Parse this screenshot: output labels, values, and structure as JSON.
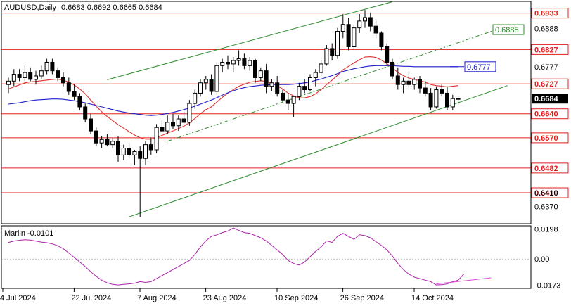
{
  "chart_data": [
    {
      "type": "candlestick",
      "title": "AUDUSD,Daily",
      "ohlc_text": "0.6683 0.6692 0.6665 0.6684",
      "ylim": [
        0.6322,
        0.6965
      ],
      "x_ticks": [
        "4 Jul 2024",
        "22 Jul 2024",
        "7 Aug 2024",
        "23 Aug 2024",
        "10 Sep 2024",
        "26 Sep 2024",
        "14 Oct 2024"
      ],
      "y_ticks": [
        "0.6888",
        "0.6777",
        "0.6684",
        "0.6410",
        "0.6370"
      ],
      "horizontal_levels": [
        {
          "value": 0.6933,
          "label": "0.6933"
        },
        {
          "value": 0.6827,
          "label": "0.6827"
        },
        {
          "value": 0.6727,
          "label": "0.6727"
        },
        {
          "value": 0.664,
          "label": "0.6640"
        },
        {
          "value": 0.657,
          "label": "0.6570"
        },
        {
          "value": 0.6482,
          "label": "0.6482"
        },
        {
          "value": 0.641,
          "label": "0.6410"
        }
      ],
      "target_labels": [
        {
          "value": 0.6885,
          "label": "0.6885",
          "color": "#2e8b2e"
        },
        {
          "value": 0.6777,
          "label": "0.6777",
          "color": "#1a1acc"
        }
      ],
      "current_price": {
        "value": 0.6684,
        "label": "0.6684"
      },
      "ohlc": [
        [
          0.6725,
          0.6745,
          0.67,
          0.6735
        ],
        [
          0.6735,
          0.677,
          0.672,
          0.6755
        ],
        [
          0.6755,
          0.677,
          0.6735,
          0.6745
        ],
        [
          0.6745,
          0.678,
          0.673,
          0.676
        ],
        [
          0.676,
          0.6775,
          0.6735,
          0.674
        ],
        [
          0.674,
          0.6765,
          0.6725,
          0.675
        ],
        [
          0.675,
          0.678,
          0.674,
          0.6765
        ],
        [
          0.6765,
          0.68,
          0.6755,
          0.679
        ],
        [
          0.679,
          0.68,
          0.6755,
          0.6765
        ],
        [
          0.6765,
          0.6775,
          0.6735,
          0.6745
        ],
        [
          0.6745,
          0.676,
          0.672,
          0.673
        ],
        [
          0.673,
          0.6745,
          0.6695,
          0.6705
        ],
        [
          0.6705,
          0.6725,
          0.668,
          0.669
        ],
        [
          0.669,
          0.67,
          0.665,
          0.666
        ],
        [
          0.666,
          0.667,
          0.6615,
          0.6625
        ],
        [
          0.6625,
          0.664,
          0.658,
          0.659
        ],
        [
          0.659,
          0.66,
          0.6545,
          0.6555
        ],
        [
          0.6555,
          0.6575,
          0.654,
          0.6565
        ],
        [
          0.6565,
          0.658,
          0.6545,
          0.655
        ],
        [
          0.655,
          0.657,
          0.654,
          0.656
        ],
        [
          0.656,
          0.6575,
          0.65,
          0.652
        ],
        [
          0.652,
          0.655,
          0.6505,
          0.654
        ],
        [
          0.654,
          0.6555,
          0.651,
          0.652
        ],
        [
          0.652,
          0.6535,
          0.649,
          0.653
        ],
        [
          0.653,
          0.6545,
          0.634,
          0.651
        ],
        [
          0.651,
          0.656,
          0.649,
          0.655
        ],
        [
          0.655,
          0.657,
          0.652,
          0.6535
        ],
        [
          0.6535,
          0.661,
          0.6525,
          0.66
        ],
        [
          0.66,
          0.662,
          0.6585,
          0.659
        ],
        [
          0.659,
          0.6635,
          0.658,
          0.6615
        ],
        [
          0.6615,
          0.664,
          0.6595,
          0.6605
        ],
        [
          0.6605,
          0.6635,
          0.659,
          0.6625
        ],
        [
          0.6625,
          0.665,
          0.661,
          0.6615
        ],
        [
          0.6615,
          0.668,
          0.6605,
          0.667
        ],
        [
          0.667,
          0.671,
          0.6655,
          0.67
        ],
        [
          0.67,
          0.674,
          0.669,
          0.673
        ],
        [
          0.673,
          0.675,
          0.671,
          0.674
        ],
        [
          0.674,
          0.6755,
          0.6695,
          0.6705
        ],
        [
          0.6705,
          0.679,
          0.6695,
          0.678
        ],
        [
          0.678,
          0.68,
          0.676,
          0.679
        ],
        [
          0.679,
          0.681,
          0.677,
          0.6785
        ],
        [
          0.6785,
          0.6805,
          0.676,
          0.6795
        ],
        [
          0.6795,
          0.6825,
          0.678,
          0.68
        ],
        [
          0.68,
          0.6815,
          0.677,
          0.678
        ],
        [
          0.678,
          0.6805,
          0.6765,
          0.6795
        ],
        [
          0.6795,
          0.68,
          0.673,
          0.6745
        ],
        [
          0.6745,
          0.6775,
          0.6735,
          0.6765
        ],
        [
          0.6765,
          0.6785,
          0.67,
          0.672
        ],
        [
          0.672,
          0.674,
          0.6705,
          0.673
        ],
        [
          0.673,
          0.675,
          0.669,
          0.67
        ],
        [
          0.67,
          0.671,
          0.6675,
          0.668
        ],
        [
          0.668,
          0.67,
          0.665,
          0.667
        ],
        [
          0.667,
          0.669,
          0.663,
          0.669
        ],
        [
          0.669,
          0.673,
          0.668,
          0.672
        ],
        [
          0.672,
          0.674,
          0.67,
          0.671
        ],
        [
          0.671,
          0.6755,
          0.6705,
          0.6745
        ],
        [
          0.6745,
          0.677,
          0.672,
          0.676
        ],
        [
          0.676,
          0.6795,
          0.675,
          0.6785
        ],
        [
          0.6785,
          0.684,
          0.678,
          0.683
        ],
        [
          0.683,
          0.6845,
          0.6795,
          0.681
        ],
        [
          0.681,
          0.689,
          0.68,
          0.688
        ],
        [
          0.688,
          0.693,
          0.686,
          0.69
        ],
        [
          0.69,
          0.692,
          0.6825,
          0.6835
        ],
        [
          0.6835,
          0.69,
          0.6825,
          0.689
        ],
        [
          0.689,
          0.693,
          0.6875,
          0.691
        ],
        [
          0.691,
          0.6942,
          0.689,
          0.692
        ],
        [
          0.692,
          0.6935,
          0.688,
          0.6895
        ],
        [
          0.6895,
          0.6915,
          0.686,
          0.6875
        ],
        [
          0.6875,
          0.688,
          0.6825,
          0.6835
        ],
        [
          0.6835,
          0.6845,
          0.678,
          0.679
        ],
        [
          0.679,
          0.68,
          0.674,
          0.675
        ],
        [
          0.675,
          0.6775,
          0.671,
          0.6725
        ],
        [
          0.6725,
          0.6745,
          0.67,
          0.6735
        ],
        [
          0.6735,
          0.676,
          0.6715,
          0.6725
        ],
        [
          0.6725,
          0.6745,
          0.671,
          0.674
        ],
        [
          0.674,
          0.675,
          0.67,
          0.6715
        ],
        [
          0.6715,
          0.6735,
          0.669,
          0.67
        ],
        [
          0.67,
          0.6715,
          0.665,
          0.666
        ],
        [
          0.666,
          0.672,
          0.6655,
          0.671
        ],
        [
          0.671,
          0.6725,
          0.669,
          0.67
        ],
        [
          0.67,
          0.672,
          0.665,
          0.666
        ],
        [
          0.666,
          0.6695,
          0.665,
          0.6684
        ],
        [
          0.6683,
          0.6692,
          0.6665,
          0.6684
        ]
      ],
      "moving_averages": [
        {
          "color": "#e03030",
          "values": [
            0.6712,
            0.6718,
            0.6724,
            0.673,
            0.6733,
            0.6734,
            0.6736,
            0.6738,
            0.674,
            0.6741,
            0.6738,
            0.6732,
            0.6724,
            0.6712,
            0.6698,
            0.668,
            0.6662,
            0.6646,
            0.6632,
            0.662,
            0.6608,
            0.6598,
            0.6588,
            0.6578,
            0.657,
            0.6566,
            0.6566,
            0.657,
            0.6577,
            0.6584,
            0.659,
            0.6597,
            0.6604,
            0.6614,
            0.6626,
            0.664,
            0.6652,
            0.666,
            0.6674,
            0.6688,
            0.67,
            0.671,
            0.672,
            0.6726,
            0.6732,
            0.6734,
            0.6736,
            0.6734,
            0.673,
            0.6722,
            0.6712,
            0.67,
            0.6692,
            0.6686,
            0.6686,
            0.669,
            0.6698,
            0.671,
            0.6725,
            0.6738,
            0.6752,
            0.6768,
            0.6778,
            0.6788,
            0.6797,
            0.6805,
            0.6806,
            0.6804,
            0.6796,
            0.6786,
            0.6774,
            0.676,
            0.6751,
            0.6744,
            0.674,
            0.6736,
            0.6732,
            0.6725,
            0.6722,
            0.672,
            0.6718,
            0.672,
            0.6722
          ]
        },
        {
          "color": "#2020cc",
          "values": [
            0.6668,
            0.667,
            0.6672,
            0.6675,
            0.6678,
            0.668,
            0.6681,
            0.6682,
            0.6683,
            0.6683,
            0.6682,
            0.668,
            0.6678,
            0.6675,
            0.6672,
            0.6668,
            0.6664,
            0.666,
            0.6656,
            0.6652,
            0.6648,
            0.6645,
            0.6642,
            0.664,
            0.6638,
            0.6636,
            0.6635,
            0.6636,
            0.6638,
            0.6641,
            0.6644,
            0.6648,
            0.6652,
            0.6657,
            0.6662,
            0.6668,
            0.6674,
            0.668,
            0.6687,
            0.6694,
            0.6701,
            0.6707,
            0.6712,
            0.6716,
            0.6719,
            0.6721,
            0.6723,
            0.6724,
            0.6725,
            0.6725,
            0.6725,
            0.6725,
            0.6726,
            0.6728,
            0.673,
            0.6733,
            0.6737,
            0.6741,
            0.6746,
            0.6751,
            0.6757,
            0.6763,
            0.6767,
            0.6771,
            0.6774,
            0.6777,
            0.6779,
            0.678,
            0.678,
            0.678,
            0.678,
            0.6779,
            0.6778,
            0.6778,
            0.6777,
            0.6777,
            0.6777,
            0.6777,
            0.6777,
            0.6777,
            0.6777,
            0.6777,
            0.6777
          ]
        }
      ]
    },
    {
      "type": "line",
      "title": "Marlin -0.0101",
      "ylim": [
        -0.019,
        0.0215
      ],
      "y_ticks": [
        "0.0198",
        "0.00",
        "-0.0173"
      ],
      "x_ticks": [
        "4 Jul 2024",
        "22 Jul 2024",
        "7 Aug 2024",
        "23 Aug 2024",
        "10 Sep 2024",
        "26 Sep 2024",
        "14 Oct 2024"
      ],
      "series": [
        {
          "color": "#aa22aa",
          "values": [
            0.011,
            0.0118,
            0.0124,
            0.0128,
            0.0125,
            0.0118,
            0.0112,
            0.0108,
            0.01,
            0.0088,
            0.0068,
            0.004,
            0.001,
            -0.002,
            -0.005,
            -0.0085,
            -0.0115,
            -0.014,
            -0.0158,
            -0.0168,
            -0.0172,
            -0.0168,
            -0.0165,
            -0.016,
            -0.015,
            -0.0155,
            -0.015,
            -0.013,
            -0.011,
            -0.009,
            -0.007,
            -0.005,
            -0.003,
            -0.001,
            0.003,
            0.008,
            0.012,
            0.015,
            0.016,
            0.0175,
            0.0185,
            0.0205,
            0.019,
            0.0175,
            0.017,
            0.0155,
            0.014,
            0.012,
            0.009,
            0.006,
            0.003,
            -0.001,
            -0.003,
            -0.004,
            -0.002,
            0.0015,
            0.005,
            0.008,
            0.012,
            0.011,
            0.015,
            0.017,
            0.015,
            0.013,
            0.016,
            0.0155,
            0.014,
            0.0115,
            0.009,
            0.006,
            0.002,
            -0.003,
            -0.007,
            -0.01,
            -0.012,
            -0.013,
            -0.014,
            -0.015,
            -0.0172,
            -0.017,
            -0.0165,
            -0.015,
            -0.014,
            -0.0101
          ]
        }
      ],
      "trend_line": {
        "color": "#dd44dd",
        "points": [
          [
            78,
            -0.0165
          ],
          [
            88,
            -0.0125
          ]
        ]
      }
    }
  ]
}
